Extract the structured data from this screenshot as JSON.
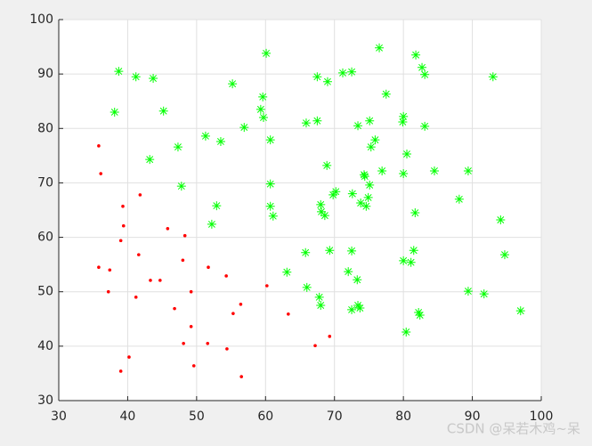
{
  "chart_data": {
    "type": "scatter",
    "xlim": [
      30,
      100
    ],
    "xticks": [
      30,
      40,
      50,
      60,
      70,
      80,
      90,
      100
    ],
    "ylim": [
      30,
      100
    ],
    "yticks": [
      30,
      40,
      50,
      60,
      70,
      80,
      90,
      100
    ],
    "grid": true,
    "series": [
      {
        "color": "#ff0000",
        "marker": "dot",
        "x": [
          35.8,
          36.1,
          41.8,
          39.3,
          39.4,
          45.8,
          39.0,
          48.3,
          41.6,
          35.8,
          37.4,
          48.0,
          51.7,
          54.3,
          43.3,
          44.7,
          37.2,
          41.2,
          49.2,
          60.2,
          56.4,
          46.8,
          55.3,
          63.3,
          49.2,
          69.3,
          67.2,
          48.1,
          51.6,
          54.4,
          40.2,
          49.6,
          39.0,
          56.5
        ],
        "values": [
          76.8,
          71.7,
          67.8,
          65.7,
          62.1,
          61.6,
          59.4,
          60.3,
          56.8,
          54.5,
          54.0,
          55.8,
          54.5,
          52.9,
          52.1,
          52.1,
          50.0,
          49.0,
          50.0,
          51.1,
          47.7,
          46.9,
          46.0,
          45.9,
          43.6,
          41.8,
          40.1,
          40.5,
          40.5,
          39.5,
          38.0,
          36.4,
          35.4,
          34.4
        ]
      },
      {
        "color": "#00ff00",
        "marker": "asterisk",
        "x": [
          76.5,
          60.1,
          81.8,
          82.7,
          38.7,
          41.2,
          43.7,
          67.5,
          69.0,
          71.2,
          72.5,
          83.1,
          93.0,
          55.2,
          77.5,
          59.6,
          59.3,
          45.2,
          38.1,
          80.0,
          59.7,
          79.9,
          75.1,
          67.5,
          65.9,
          83.1,
          73.4,
          56.9,
          51.3,
          60.7,
          53.5,
          75.9,
          75.3,
          80.5,
          47.3,
          43.2,
          68.9,
          76.9,
          74.3,
          84.5,
          80.0,
          89.4,
          74.4,
          47.8,
          60.7,
          75.1,
          70.2,
          69.8,
          72.6,
          74.9,
          88.1,
          73.8,
          74.6,
          60.7,
          52.9,
          68.0,
          81.7,
          61.1,
          68.1,
          68.6,
          94.1,
          52.2,
          65.8,
          69.3,
          81.5,
          72.5,
          80.0,
          81.1,
          94.7,
          63.1,
          72.0,
          73.3,
          66.0,
          67.8,
          68.0,
          89.4,
          91.7,
          73.4,
          73.7,
          72.5,
          82.2,
          82.4,
          97.0,
          80.4
        ],
        "values": [
          94.8,
          93.8,
          93.5,
          91.2,
          90.5,
          89.5,
          89.2,
          89.5,
          88.6,
          90.2,
          90.4,
          89.9,
          89.5,
          88.2,
          86.3,
          85.8,
          83.5,
          83.2,
          83.0,
          82.2,
          82.0,
          81.2,
          81.4,
          81.4,
          81.0,
          80.4,
          80.5,
          80.2,
          78.6,
          77.9,
          77.6,
          77.9,
          76.6,
          75.3,
          76.6,
          74.3,
          73.2,
          72.2,
          71.5,
          72.2,
          71.7,
          72.2,
          71.2,
          69.4,
          69.8,
          69.6,
          68.4,
          67.8,
          68.0,
          67.3,
          67.0,
          66.3,
          65.7,
          65.7,
          65.8,
          66.0,
          64.5,
          63.9,
          64.7,
          64.0,
          63.2,
          62.4,
          57.2,
          57.6,
          57.6,
          57.5,
          55.7,
          55.4,
          56.8,
          53.6,
          53.7,
          52.2,
          50.8,
          49.0,
          47.5,
          50.1,
          49.6,
          47.5,
          47.0,
          46.7,
          46.2,
          45.7,
          46.5,
          42.6
        ]
      }
    ],
    "watermark": "CSDN @呆若木鸡~呆"
  }
}
